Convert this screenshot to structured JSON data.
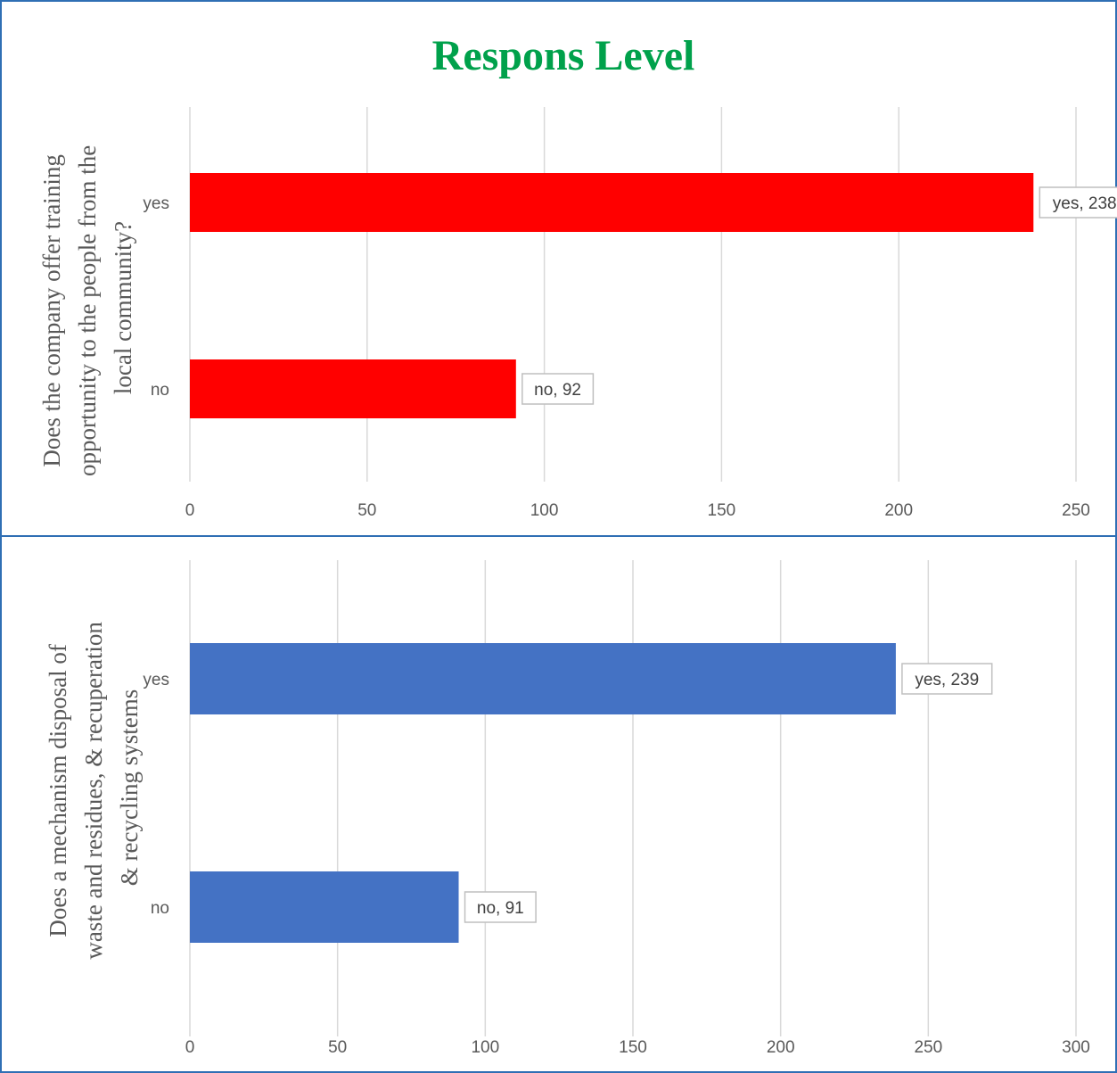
{
  "chart_data": [
    {
      "type": "bar",
      "orientation": "horizontal",
      "title": "Respons Level",
      "ylabel_lines": [
        "Does the company offer training",
        "opportunity to the people from the",
        "local community?"
      ],
      "categories": [
        "yes",
        "no"
      ],
      "values": [
        238,
        92
      ],
      "data_labels": [
        "yes, 238",
        "no, 92"
      ],
      "xlim": [
        0,
        250
      ],
      "xticks": [
        0,
        50,
        100,
        150,
        200,
        250
      ],
      "grid": true,
      "legend": "none",
      "color": "#ff0000"
    },
    {
      "type": "bar",
      "orientation": "horizontal",
      "title": "",
      "ylabel_lines": [
        "Does a mechanism disposal of",
        "waste and residues, & recuperation",
        "& recycling systems"
      ],
      "categories": [
        "yes",
        "no"
      ],
      "values": [
        239,
        91
      ],
      "data_labels": [
        "yes, 239",
        "no, 91"
      ],
      "xlim": [
        0,
        300
      ],
      "xticks": [
        0,
        50,
        100,
        150,
        200,
        250,
        300
      ],
      "grid": true,
      "legend": "none",
      "color": "#4472c4"
    }
  ],
  "title_color": "#00a14b"
}
